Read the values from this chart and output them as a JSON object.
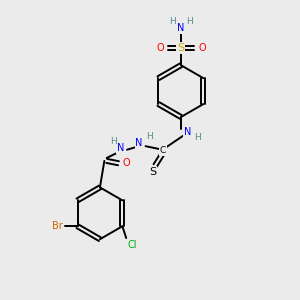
{
  "background_color": "#ebebeb",
  "atom_colors": {
    "C": "#000000",
    "N": "#0000ff",
    "O": "#ff0000",
    "S_sulfonyl": "#ccaa00",
    "S_thio": "#000000",
    "Br": "#cc6600",
    "Cl": "#00aa00",
    "H": "#5c8a8a"
  }
}
